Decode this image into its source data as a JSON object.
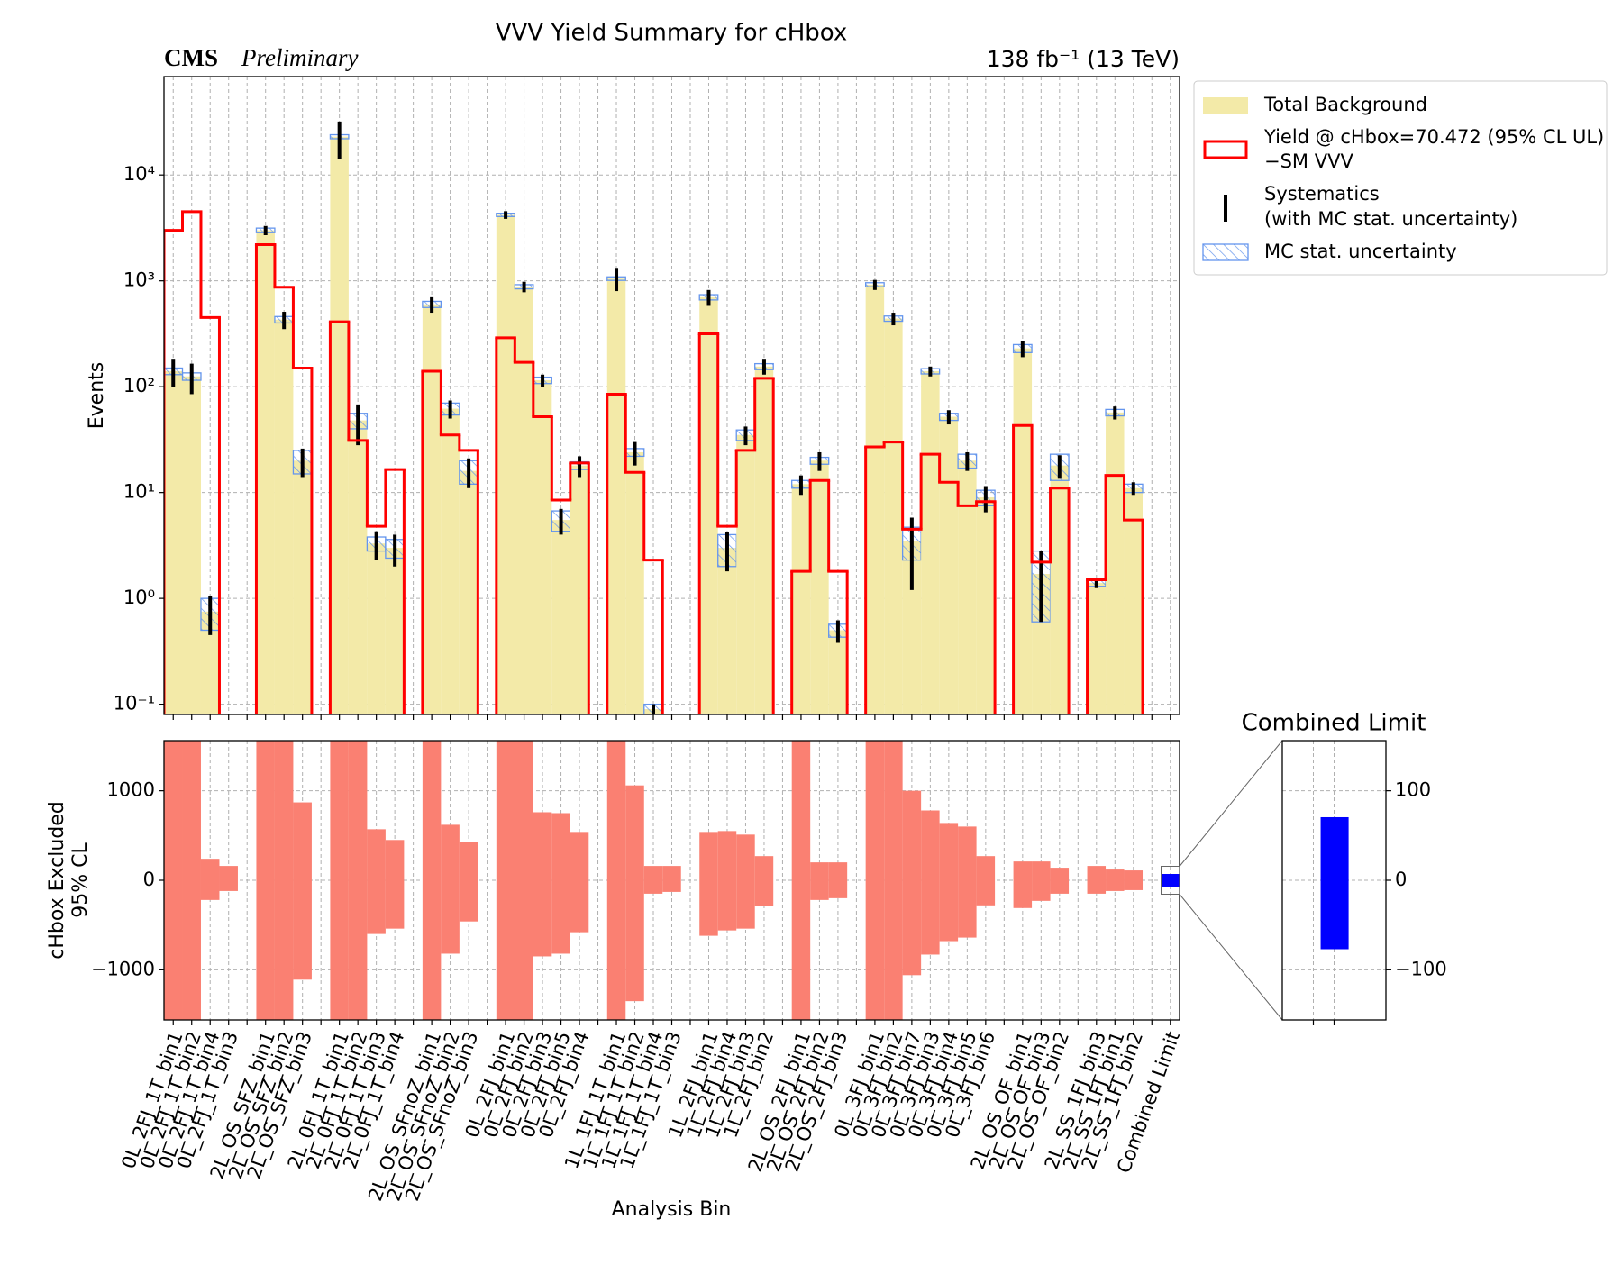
{
  "chart_data": [
    {
      "type": "step",
      "title": "VVV Yield Summary for cHbox",
      "experiment": "CMS",
      "status": "Preliminary",
      "lumi": "138 fb⁻¹ (13 TeV)",
      "ylabel": "Events",
      "yscale": "log",
      "ylim": [
        0.08,
        85000
      ],
      "yticks": [
        {
          "value": 0.1,
          "label": "10⁻¹"
        },
        {
          "value": 1,
          "label": "10⁰"
        },
        {
          "value": 10,
          "label": "10¹"
        },
        {
          "value": 100,
          "label": "10²"
        },
        {
          "value": 1000,
          "label": "10³"
        },
        {
          "value": 10000,
          "label": "10⁴"
        }
      ],
      "grid": true,
      "legend": "outside upper right",
      "categories": [
        "0L_2FJ_1T_bin1",
        "0L_2FJ_1T_bin2",
        "0L_2FJ_1T_bin4",
        "0L_2FJ_1T_bin3",
        null,
        "2L_OS_SFZ_bin1",
        "2L_OS_SFZ_bin2",
        "2L_OS_SFZ_bin3",
        null,
        "2L_0FJ_1T_bin1",
        "2L_0FJ_1T_bin2",
        "2L_0FJ_1T_bin3",
        "2L_0FJ_1T_bin4",
        null,
        "2L_OS_SFnoZ_bin1",
        "2L_OS_SFnoZ_bin2",
        "2L_OS_SFnoZ_bin3",
        null,
        "0L_2FJ_bin1",
        "0L_2FJ_bin2",
        "0L_2FJ_bin3",
        "0L_2FJ_bin5",
        "0L_2FJ_bin4",
        null,
        "1L_1FJ_1T_bin1",
        "1L_1FJ_1T_bin2",
        "1L_1FJ_1T_bin4",
        "1L_1FJ_1T_bin3",
        null,
        "1L_2FJ_bin1",
        "1L_2FJ_bin4",
        "1L_2FJ_bin3",
        "1L_2FJ_bin2",
        null,
        "2L_OS_2FJ_bin1",
        "2L_OS_2FJ_bin2",
        "2L_OS_2FJ_bin3",
        null,
        "0L_3FJ_bin1",
        "0L_3FJ_bin2",
        "0L_3FJ_bin7",
        "0L_3FJ_bin3",
        "0L_3FJ_bin4",
        "0L_3FJ_bin5",
        "0L_3FJ_bin6",
        null,
        "2L_OS_OF_bin1",
        "2L_OS_OF_bin3",
        "2L_OS_OF_bin2",
        null,
        "2L_SS_1FJ_bin3",
        "2L_SS_1FJ_bin1",
        "2L_SS_1FJ_bin2",
        null,
        "Combined Limit"
      ],
      "series": [
        {
          "name": "Total Background",
          "color": "#f3eaa8",
          "values": [
            140,
            125,
            0.75,
            null,
            null,
            3000,
            430,
            20,
            null,
            23000,
            48,
            3.3,
            3,
            null,
            600,
            62,
            16,
            null,
            4200,
            880,
            115,
            5.5,
            18,
            null,
            1050,
            24,
            0.09,
            null,
            null,
            700,
            3,
            35,
            155,
            null,
            12,
            20,
            0.5,
            null,
            920,
            440,
            3.5,
            140,
            52,
            20,
            9,
            null,
            230,
            1.7,
            18,
            null,
            1.4,
            57,
            11,
            null,
            null
          ],
          "errors": {
            "name": [
              "Systematics",
              "(with MC stat. uncertainty)"
            ],
            "color": "#000000",
            "values": [
              40,
              40,
              0.3,
              null,
              null,
              300,
              80,
              6,
              null,
              9000,
              20,
              1,
              1,
              null,
              100,
              12,
              5,
              null,
              350,
              100,
              15,
              1.5,
              4,
              null,
              250,
              6,
              0.01,
              null,
              null,
              120,
              1.2,
              7,
              25,
              null,
              2.5,
              4,
              0.12,
              null,
              100,
              60,
              2.3,
              15,
              8,
              4,
              2.5,
              null,
              40,
              1.1,
              4.5,
              null,
              0.15,
              8,
              1.5,
              null,
              null
            ]
          },
          "mc_stat": {
            "name": "MC stat. uncertainty",
            "color": "#6495ed",
            "values": [
              10,
              10,
              0.25,
              null,
              null,
              150,
              30,
              5,
              null,
              1000,
              8,
              0.5,
              0.6,
              null,
              40,
              8,
              4,
              null,
              150,
              40,
              8,
              1.2,
              1.5,
              null,
              40,
              2,
              0.01,
              null,
              null,
              40,
              1,
              4,
              10,
              null,
              1,
              1.5,
              0.07,
              null,
              40,
              25,
              1.2,
              8,
              4,
              3,
              1.5,
              null,
              20,
              1.1,
              5,
              null,
              0.1,
              4,
              1,
              null,
              null
            ]
          }
        },
        {
          "name": [
            "Yield @ cHbox=70.472 (95% CL UL)",
            "−SM VVV"
          ],
          "color": "#ff0000",
          "values": [
            3000,
            4500,
            450,
            null,
            null,
            2200,
            870,
            150,
            null,
            410,
            31,
            4.8,
            16.5,
            null,
            140,
            35,
            25,
            null,
            290,
            170,
            52,
            8.5,
            19,
            null,
            85,
            15.5,
            2.3,
            null,
            null,
            316,
            4.8,
            25,
            120,
            null,
            1.8,
            13,
            1.8,
            null,
            27,
            30,
            4.5,
            23,
            12.5,
            7.5,
            8.2,
            null,
            43,
            2.2,
            11,
            null,
            1.5,
            14.5,
            5.5,
            null,
            null
          ]
        }
      ]
    },
    {
      "type": "range-bar",
      "ylabel": [
        "cHbox Excluded",
        "95% CL"
      ],
      "xlabel": "Analysis Bin",
      "ylim": [
        -1560,
        1560
      ],
      "yticks": [
        {
          "value": -1000,
          "label": "−1000"
        },
        0,
        1000
      ],
      "grid": true,
      "series": [
        {
          "color": "#fa8072",
          "low": [
            -1560,
            -1560,
            -220,
            -120,
            null,
            -1560,
            -1560,
            -1110,
            null,
            -1560,
            -1560,
            -600,
            -540,
            null,
            -1560,
            -820,
            -460,
            null,
            -1560,
            -1560,
            -850,
            -820,
            -580,
            null,
            -1560,
            -1350,
            -150,
            -130,
            null,
            -620,
            -560,
            -540,
            -290,
            null,
            -1560,
            -220,
            -200,
            null,
            -1560,
            -1560,
            -1060,
            -830,
            -680,
            -640,
            -280,
            null,
            -310,
            -230,
            -150,
            null,
            -150,
            -120,
            -110,
            null,
            null
          ],
          "high": [
            1560,
            1560,
            240,
            160,
            null,
            1560,
            1560,
            870,
            null,
            1560,
            1560,
            570,
            450,
            null,
            1560,
            620,
            430,
            null,
            1560,
            1560,
            760,
            750,
            540,
            null,
            1560,
            1060,
            160,
            160,
            null,
            540,
            550,
            510,
            270,
            null,
            1560,
            200,
            200,
            null,
            1560,
            1560,
            1000,
            780,
            640,
            600,
            270,
            null,
            210,
            210,
            140,
            null,
            160,
            120,
            110,
            null,
            null
          ]
        },
        {
          "color": "#0000ff",
          "low": [
            null,
            null,
            null,
            null,
            null,
            null,
            null,
            null,
            null,
            null,
            null,
            null,
            null,
            null,
            null,
            null,
            null,
            null,
            null,
            null,
            null,
            null,
            null,
            null,
            null,
            null,
            null,
            null,
            null,
            null,
            null,
            null,
            null,
            null,
            null,
            null,
            null,
            null,
            null,
            null,
            null,
            null,
            null,
            null,
            null,
            null,
            null,
            null,
            null,
            null,
            null,
            null,
            null,
            null,
            -77
          ],
          "high": [
            null,
            null,
            null,
            null,
            null,
            null,
            null,
            null,
            null,
            null,
            null,
            null,
            null,
            null,
            null,
            null,
            null,
            null,
            null,
            null,
            null,
            null,
            null,
            null,
            null,
            null,
            null,
            null,
            null,
            null,
            null,
            null,
            null,
            null,
            null,
            null,
            null,
            null,
            null,
            null,
            null,
            null,
            null,
            null,
            null,
            null,
            null,
            null,
            null,
            null,
            null,
            null,
            null,
            null,
            70.472
          ]
        }
      ]
    },
    {
      "type": "range-bar",
      "title": "Combined Limit",
      "ylim": [
        -156,
        156
      ],
      "yticks": [
        {
          "value": -100,
          "label": "−100"
        },
        0,
        100
      ],
      "grid": true,
      "color": "#0000ff",
      "low": -77,
      "high": 70.472
    }
  ]
}
